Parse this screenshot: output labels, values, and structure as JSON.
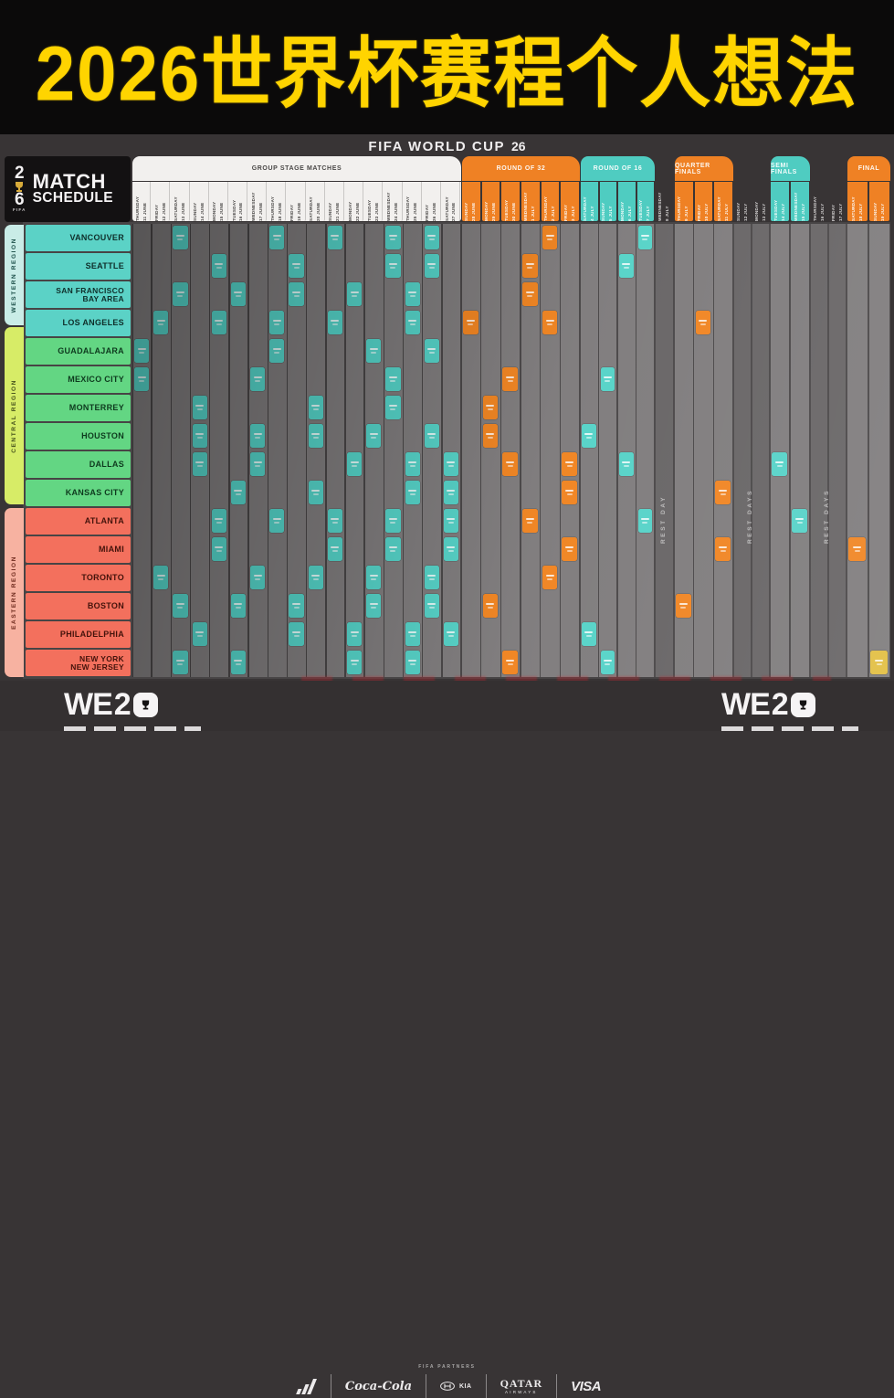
{
  "banner": {
    "title": "2026世界杯赛程个人想法"
  },
  "brand": {
    "name": "FIFA WORLD CUP",
    "mark": "26"
  },
  "logo": {
    "mark_top": "2",
    "mark_bottom": "6",
    "mark_fifa": "FIFA",
    "line1": "MATCH",
    "line2": "SCHEDULE"
  },
  "stages": [
    {
      "id": "group",
      "label": "GROUP STAGE MATCHES"
    },
    {
      "id": "r32",
      "label": "ROUND OF 32"
    },
    {
      "id": "r16",
      "label": "ROUND OF 16"
    },
    {
      "id": "qf",
      "label": "QUARTER FINALS"
    },
    {
      "id": "sf",
      "label": "SEMI FINALS"
    },
    {
      "id": "final",
      "label": "FINAL"
    }
  ],
  "columns": [
    {
      "day": "THURSDAY",
      "date": "11 JUNE",
      "stage": "group"
    },
    {
      "day": "FRIDAY",
      "date": "12 JUNE",
      "stage": "group"
    },
    {
      "day": "SATURDAY",
      "date": "13 JUNE",
      "stage": "group"
    },
    {
      "day": "SUNDAY",
      "date": "14 JUNE",
      "stage": "group"
    },
    {
      "day": "MONDAY",
      "date": "15 JUNE",
      "stage": "group"
    },
    {
      "day": "TUESDAY",
      "date": "16 JUNE",
      "stage": "group"
    },
    {
      "day": "WEDNESDAY",
      "date": "17 JUNE",
      "stage": "group"
    },
    {
      "day": "THURSDAY",
      "date": "18 JUNE",
      "stage": "group"
    },
    {
      "day": "FRIDAY",
      "date": "19 JUNE",
      "stage": "group"
    },
    {
      "day": "SATURDAY",
      "date": "20 JUNE",
      "stage": "group"
    },
    {
      "day": "SUNDAY",
      "date": "21 JUNE",
      "stage": "group"
    },
    {
      "day": "MONDAY",
      "date": "22 JUNE",
      "stage": "group"
    },
    {
      "day": "TUESDAY",
      "date": "23 JUNE",
      "stage": "group"
    },
    {
      "day": "WEDNESDAY",
      "date": "24 JUNE",
      "stage": "group"
    },
    {
      "day": "THURSDAY",
      "date": "25 JUNE",
      "stage": "group"
    },
    {
      "day": "FRIDAY",
      "date": "26 JUNE",
      "stage": "group"
    },
    {
      "day": "SATURDAY",
      "date": "27 JUNE",
      "stage": "group"
    },
    {
      "day": "SUNDAY",
      "date": "28 JUNE",
      "stage": "r32"
    },
    {
      "day": "MONDAY",
      "date": "29 JUNE",
      "stage": "r32"
    },
    {
      "day": "TUESDAY",
      "date": "30 JUNE",
      "stage": "r32"
    },
    {
      "day": "WEDNESDAY",
      "date": "1 JULY",
      "stage": "r32"
    },
    {
      "day": "THURSDAY",
      "date": "2 JULY",
      "stage": "r32"
    },
    {
      "day": "FRIDAY",
      "date": "3 JULY",
      "stage": "r32"
    },
    {
      "day": "SATURDAY",
      "date": "4 JULY",
      "stage": "r16"
    },
    {
      "day": "SUNDAY",
      "date": "5 JULY",
      "stage": "r16"
    },
    {
      "day": "MONDAY",
      "date": "6 JULY",
      "stage": "r16"
    },
    {
      "day": "TUESDAY",
      "date": "7 JULY",
      "stage": "r16"
    },
    {
      "day": "WEDNESDAY",
      "date": "8 JULY",
      "stage": "rest"
    },
    {
      "day": "THURSDAY",
      "date": "9 JULY",
      "stage": "qf"
    },
    {
      "day": "FRIDAY",
      "date": "10 JULY",
      "stage": "qf"
    },
    {
      "day": "SATURDAY",
      "date": "11 JULY",
      "stage": "qf"
    },
    {
      "day": "SUNDAY",
      "date": "12 JULY",
      "stage": "rest"
    },
    {
      "day": "MONDAY",
      "date": "13 JULY",
      "stage": "rest"
    },
    {
      "day": "TUESDAY",
      "date": "14 JULY",
      "stage": "sf"
    },
    {
      "day": "WEDNESDAY",
      "date": "15 JULY",
      "stage": "sf"
    },
    {
      "day": "THURSDAY",
      "date": "16 JULY",
      "stage": "rest"
    },
    {
      "day": "FRIDAY",
      "date": "17 JULY",
      "stage": "rest"
    },
    {
      "day": "SATURDAY",
      "date": "18 JULY",
      "stage": "final"
    },
    {
      "day": "SUNDAY",
      "date": "19 JULY",
      "stage": "final"
    }
  ],
  "regions": [
    {
      "name": "WESTERN REGION",
      "rows": [
        0,
        3
      ]
    },
    {
      "name": "CENTRAL REGION",
      "rows": [
        4,
        9
      ]
    },
    {
      "name": "EASTERN REGION",
      "rows": [
        10,
        15
      ]
    }
  ],
  "cities": [
    "VANCOUVER",
    "SEATTLE",
    "SAN FRANCISCO\nBAY AREA",
    "LOS ANGELES",
    "GUADALAJARA",
    "MEXICO CITY",
    "MONTERREY",
    "HOUSTON",
    "DALLAS",
    "KANSAS CITY",
    "ATLANTA",
    "MIAMI",
    "TORONTO",
    "BOSTON",
    "PHILADELPHIA",
    "NEW YORK\nNEW JERSEY"
  ],
  "rest_labels": [
    "REST DAY",
    "REST DAYS",
    "REST DAYS"
  ],
  "matches": {
    "group_stage": [
      [
        2,
        7,
        10,
        13,
        15
      ],
      [
        4,
        8,
        13,
        15
      ],
      [
        2,
        5,
        8,
        11,
        14
      ],
      [
        1,
        4,
        7,
        10,
        14
      ],
      [
        0,
        7,
        12,
        15
      ],
      [
        0,
        6,
        13
      ],
      [
        3,
        9,
        13
      ],
      [
        3,
        6,
        9,
        12,
        15
      ],
      [
        3,
        6,
        11,
        14,
        16
      ],
      [
        5,
        9,
        14,
        16
      ],
      [
        4,
        7,
        10,
        13,
        16
      ],
      [
        4,
        10,
        13,
        16
      ],
      [
        1,
        6,
        9,
        12,
        15
      ],
      [
        2,
        5,
        8,
        12,
        15
      ],
      [
        3,
        8,
        11,
        14,
        16
      ],
      [
        2,
        5,
        11,
        14
      ]
    ],
    "round_of_32": [
      [
        21
      ],
      [
        20
      ],
      [
        20
      ],
      [
        17,
        21
      ],
      [],
      [
        19
      ],
      [
        18
      ],
      [
        18
      ],
      [
        19,
        22
      ],
      [
        22
      ],
      [
        20
      ],
      [
        22
      ],
      [
        21
      ],
      [
        18
      ],
      [],
      [
        19
      ]
    ],
    "round_of_16": [
      [
        26
      ],
      [
        25
      ],
      [],
      [],
      [],
      [
        24
      ],
      [],
      [
        23
      ],
      [
        25
      ],
      [],
      [
        26
      ],
      [],
      [],
      [],
      [
        23
      ],
      [
        24
      ]
    ],
    "quarter_finals": [
      [],
      [],
      [],
      [
        29
      ],
      [],
      [],
      [],
      [],
      [],
      [
        30
      ],
      [],
      [
        30
      ],
      [],
      [
        28
      ],
      [],
      []
    ],
    "semi_finals": [
      [],
      [],
      [],
      [],
      [],
      [],
      [],
      [],
      [
        33
      ],
      [],
      [
        34
      ],
      [],
      [],
      [],
      [],
      []
    ],
    "third_place": [
      [],
      [],
      [],
      [],
      [],
      [],
      [],
      [],
      [],
      [],
      [],
      [
        37
      ],
      [],
      [],
      [],
      []
    ],
    "final": [
      [],
      [],
      [],
      [],
      [],
      [],
      [],
      [],
      [],
      [],
      [],
      [],
      [],
      [],
      [],
      [
        38
      ]
    ]
  },
  "colors": {
    "banner_text": "#ffd400",
    "teal": "#54d2c7",
    "orange": "#f0831f",
    "gold": "#e2bd3e",
    "western_tab": "#c9ece7",
    "central_tab": "#d7ec67",
    "eastern_tab": "#f7b2a1",
    "western_city": "#5bd2c6",
    "central_city": "#63d683",
    "eastern_city": "#f3705d"
  },
  "footer": {
    "partners_label": "FIFA PARTNERS",
    "sponsors": [
      "adidas",
      "Coca-Cola",
      "HYUNDAI",
      "KIA",
      "QATAR",
      "AIRWAYS",
      "VISA"
    ],
    "campaign_we": "WE",
    "campaign_two": "2"
  }
}
